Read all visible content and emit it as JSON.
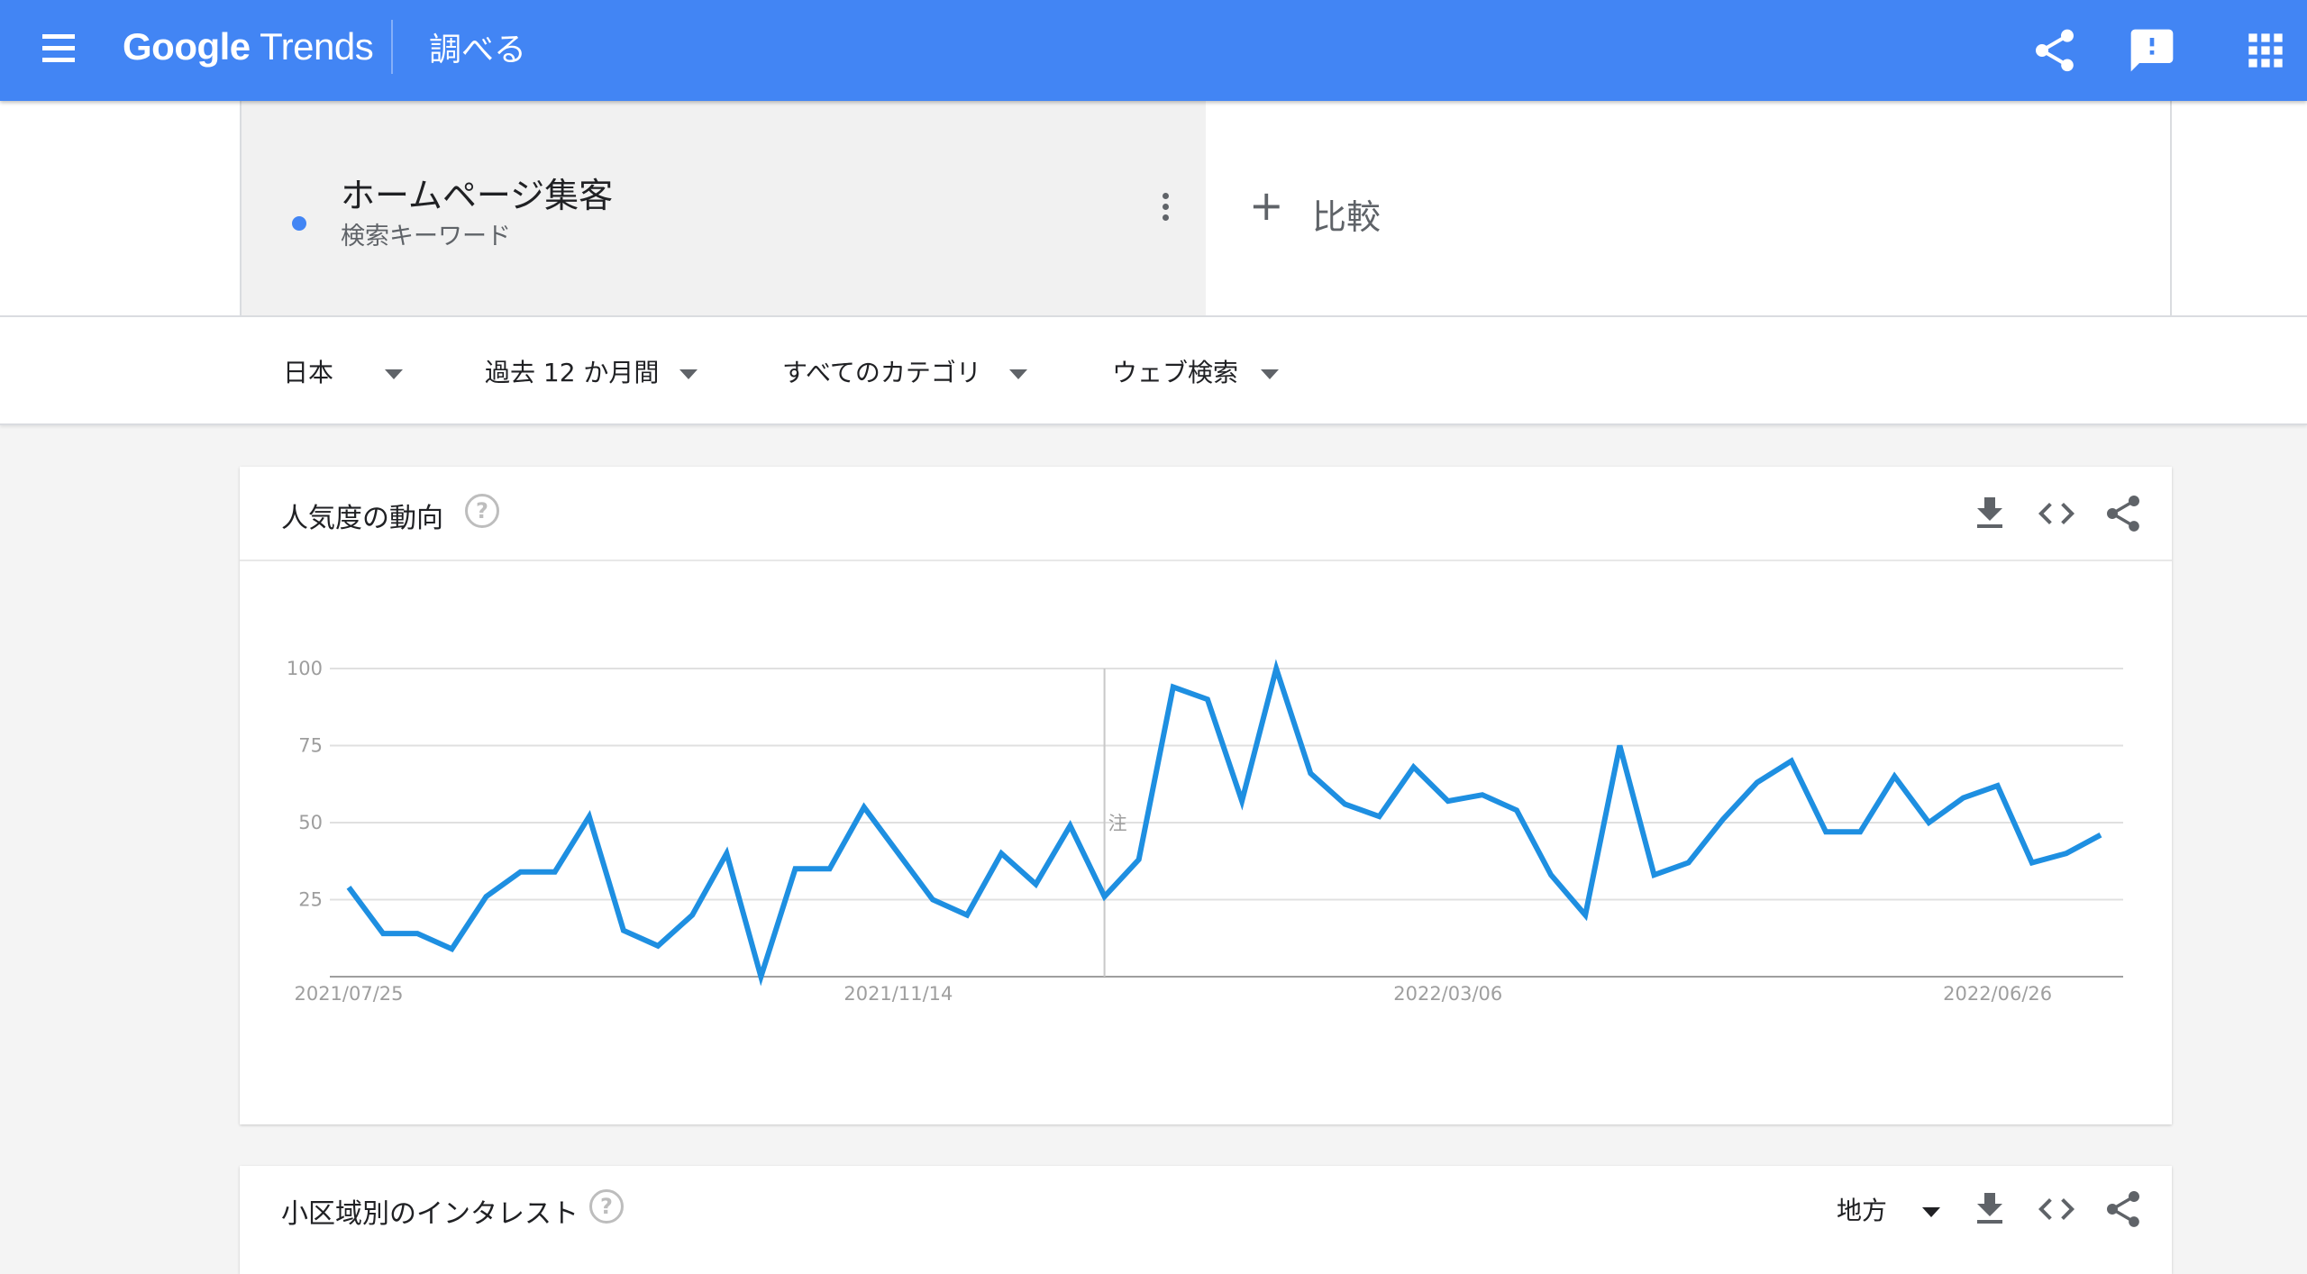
{
  "header": {
    "brand_part1": "Google",
    "brand_part2": " Trends",
    "section": "調べる",
    "icons": [
      "menu-icon",
      "share-icon",
      "feedback-icon",
      "apps-icon"
    ]
  },
  "term": {
    "name": "ホームページ集客",
    "type": "検索キーワード",
    "color": "#4285f4"
  },
  "compare": {
    "plus": "+",
    "label": "比較"
  },
  "filters": {
    "region": "日本",
    "period": "過去 12 か月間",
    "category": "すべてのカテゴリ",
    "search_type": "ウェブ検索"
  },
  "interest_card": {
    "title": "人気度の動向",
    "help": "?",
    "icons": [
      "download-icon",
      "embed-icon",
      "share-icon"
    ]
  },
  "chart_data": {
    "type": "line",
    "x_ticks": [
      "2021/07/25",
      "2021/11/14",
      "2022/03/06",
      "2022/06/26"
    ],
    "y_ticks": [
      25,
      50,
      75,
      100
    ],
    "ylim": [
      0,
      100
    ],
    "grid": true,
    "line_color": "#1e8fe1",
    "annotation": "注",
    "series": [
      {
        "values": [
          29,
          14,
          14,
          9,
          26,
          34,
          34,
          52,
          15,
          10,
          20,
          40,
          0,
          35,
          35,
          55,
          40,
          25,
          20,
          40,
          30,
          49,
          26,
          38,
          94,
          90,
          57,
          100,
          66,
          56,
          52,
          68,
          57,
          59,
          54,
          33,
          20,
          75,
          33,
          37,
          51,
          63,
          70,
          47,
          47,
          65,
          50,
          58,
          62,
          37,
          40,
          46
        ]
      }
    ]
  },
  "region_card": {
    "title": "小区域別のインタレスト",
    "help": "?",
    "dropdown": "地方",
    "icons": [
      "download-icon",
      "embed-icon",
      "share-icon"
    ]
  }
}
